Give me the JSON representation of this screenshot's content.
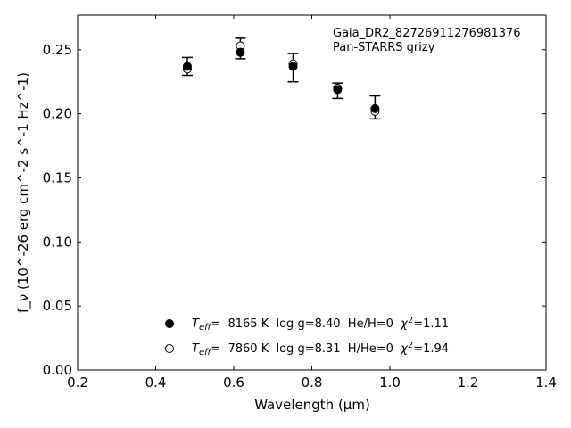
{
  "chart_data": {
    "type": "scatter",
    "xlabel": "Wavelength (μm)",
    "ylabel": "f_ν (10^-26 erg cm^-2 s^-1 Hz^-1)",
    "xlim": [
      0.2,
      1.4
    ],
    "ylim": [
      0.0,
      0.277
    ],
    "xticks": [
      "0.2",
      "0.4",
      "0.6",
      "0.8",
      "1.0",
      "1.2",
      "1.4"
    ],
    "yticks": [
      "0.00",
      "0.05",
      "0.10",
      "0.15",
      "0.20",
      "0.25"
    ],
    "annotation": [
      "Gaia_DR2_82726911276981376",
      "Pan-STARRS grizy"
    ],
    "observed": {
      "x": [
        0.481,
        0.617,
        0.752,
        0.866,
        0.962
      ],
      "y": [
        0.237,
        0.251,
        0.236,
        0.218,
        0.205
      ],
      "yerr": [
        0.007,
        0.008,
        0.011,
        0.006,
        0.009
      ]
    },
    "series": [
      {
        "marker": "filled",
        "x": [
          0.481,
          0.617,
          0.752,
          0.866,
          0.962
        ],
        "y": [
          0.237,
          0.248,
          0.237,
          0.219,
          0.204
        ]
      },
      {
        "marker": "open",
        "x": [
          0.481,
          0.617,
          0.752,
          0.866,
          0.962
        ],
        "y": [
          0.235,
          0.253,
          0.239,
          0.22,
          0.202
        ]
      }
    ],
    "legend": [
      {
        "marker": "filled",
        "teff_label": "T",
        "teff_sub": "eff",
        "text": "=  8165 K  log g=8.40  He/H=0  ",
        "chi_label": "χ",
        "chi_sup": "2",
        "chi_value": "=1.11"
      },
      {
        "marker": "open",
        "teff_label": "T",
        "teff_sub": "eff",
        "text": "=  7860 K  log g=8.31  H/He=0  ",
        "chi_label": "χ",
        "chi_sup": "2",
        "chi_value": "=1.94"
      }
    ],
    "legend_position": "bottom-center",
    "grid": false
  }
}
